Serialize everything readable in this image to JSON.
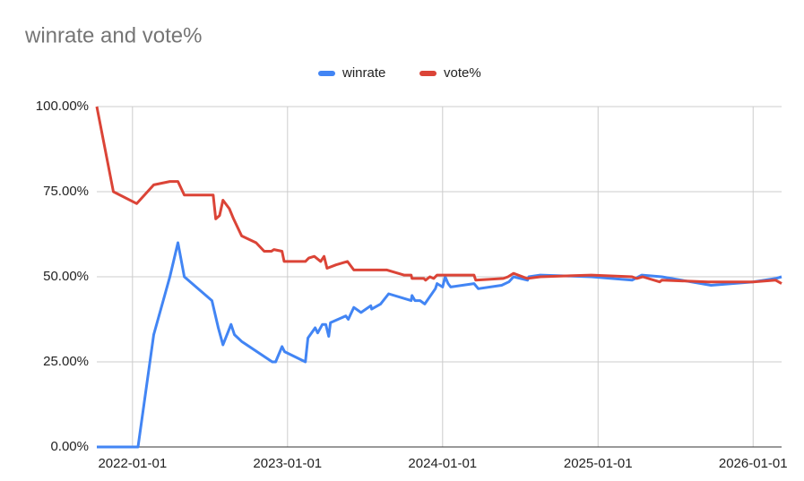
{
  "chart_data": {
    "type": "line",
    "title": "winrate and vote%",
    "xlim": [
      "2021-10-09",
      "2026-03-09"
    ],
    "xticks": [
      "2022-01-01",
      "2023-01-01",
      "2024-01-01",
      "2025-01-01",
      "2026-01-01"
    ],
    "ylim": [
      0,
      100
    ],
    "yticks": [
      {
        "value": 0,
        "label": "0.00%"
      },
      {
        "value": 25,
        "label": "25.00%"
      },
      {
        "value": 50,
        "label": "50.00%"
      },
      {
        "value": 75,
        "label": "75.00%"
      },
      {
        "value": 100,
        "label": "100.00%"
      }
    ],
    "grid": true,
    "legend": "top",
    "series": [
      {
        "name": "winrate",
        "color": "#4285f4",
        "x": [
          "2021-10-09",
          "2022-01-14",
          "2022-02-20",
          "2022-03-30",
          "2022-04-18",
          "2022-05-03",
          "2022-07-07",
          "2022-07-22",
          "2022-08-02",
          "2022-08-21",
          "2022-08-29",
          "2022-09-15",
          "2022-11-26",
          "2022-12-04",
          "2022-12-19",
          "2022-12-25",
          "2023-02-12",
          "2023-02-18",
          "2023-03-07",
          "2023-03-13",
          "2023-03-24",
          "2023-04-01",
          "2023-04-08",
          "2023-04-12",
          "2023-05-18",
          "2023-05-24",
          "2023-06-06",
          "2023-06-23",
          "2023-07-16",
          "2023-07-18",
          "2023-08-08",
          "2023-08-27",
          "2023-10-19",
          "2023-10-21",
          "2023-10-28",
          "2023-11-09",
          "2023-11-20",
          "2023-12-15",
          "2023-12-19",
          "2024-01-01",
          "2024-01-07",
          "2024-01-14",
          "2024-01-20",
          "2024-03-15",
          "2024-03-25",
          "2024-05-19",
          "2024-06-05",
          "2024-06-16",
          "2024-07-19",
          "2024-07-22",
          "2024-08-18",
          "2024-12-16",
          "2025-03-22",
          "2025-04-14",
          "2025-05-31",
          "2025-09-24",
          "2026-01-01",
          "2026-02-23",
          "2026-03-09"
        ],
        "values": [
          0,
          0,
          33,
          50,
          60,
          50,
          43,
          35,
          30,
          36,
          33,
          31,
          25,
          25,
          29.5,
          28,
          25,
          32,
          35,
          33.5,
          36,
          36,
          32.5,
          36.5,
          38.5,
          37.5,
          41,
          39.5,
          41.5,
          40.5,
          42,
          45,
          43,
          44.5,
          43,
          43,
          42,
          46.5,
          48,
          47,
          50,
          48,
          47,
          48,
          46.5,
          47.5,
          48.5,
          50,
          49,
          50,
          50.5,
          50,
          49,
          50.5,
          50,
          47.5,
          48.5,
          49.5,
          50
        ]
      },
      {
        "name": "vote%",
        "color": "#db4437",
        "x": [
          "2021-10-09",
          "2021-11-17",
          "2022-01-11",
          "2022-02-20",
          "2022-03-30",
          "2022-04-18",
          "2022-05-03",
          "2022-07-10",
          "2022-07-16",
          "2022-07-25",
          "2022-08-02",
          "2022-08-17",
          "2022-08-27",
          "2022-09-15",
          "2022-10-19",
          "2022-11-07",
          "2022-11-24",
          "2022-11-30",
          "2022-12-19",
          "2022-12-24",
          "2023-02-12",
          "2023-02-20",
          "2023-03-05",
          "2023-03-20",
          "2023-03-28",
          "2023-04-04",
          "2023-04-25",
          "2023-05-22",
          "2023-06-06",
          "2023-08-23",
          "2023-10-02",
          "2023-10-19",
          "2023-10-21",
          "2023-11-18",
          "2023-11-22",
          "2023-12-02",
          "2023-12-11",
          "2023-12-19",
          "2024-03-15",
          "2024-03-19",
          "2024-05-23",
          "2024-06-03",
          "2024-06-16",
          "2024-07-18",
          "2024-08-18",
          "2024-12-16",
          "2025-03-22",
          "2025-04-02",
          "2025-04-16",
          "2025-05-26",
          "2025-05-31",
          "2025-09-17",
          "2026-01-01",
          "2026-02-23",
          "2026-03-09"
        ],
        "values": [
          100,
          75,
          71.5,
          77,
          78,
          78,
          74,
          74,
          67,
          68,
          72.5,
          70,
          67,
          62,
          60,
          57.5,
          57.5,
          58,
          57.5,
          54.5,
          54.5,
          55.5,
          56,
          54.5,
          56,
          52.5,
          53.5,
          54.5,
          52,
          52,
          50.5,
          50.5,
          49.5,
          49.5,
          49,
          50,
          49.5,
          50.5,
          50.5,
          49,
          49.5,
          50,
          51,
          49.5,
          50,
          50.5,
          50,
          49.5,
          50,
          48.5,
          49,
          48.5,
          48.5,
          49,
          48
        ]
      }
    ]
  }
}
